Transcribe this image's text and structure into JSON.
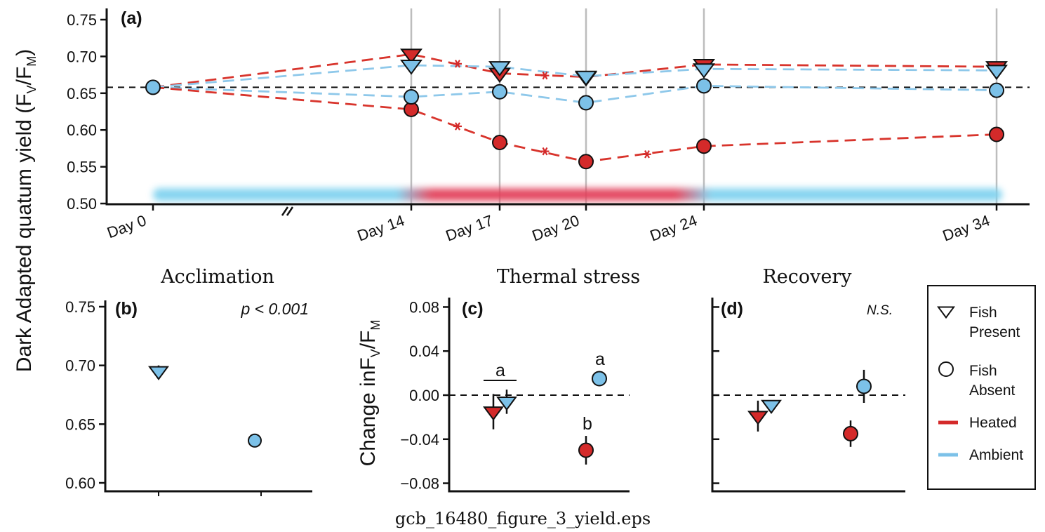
{
  "footer": "gcb_16480_figure_3_yield.eps",
  "colors": {
    "heated": "#d42a2a",
    "ambient": "#7cc1e8",
    "heated_line": "#d8342c",
    "ambient_line": "#8ec8ea",
    "band_ambient": "#7fd2ef",
    "band_heated": "#e2415a"
  },
  "chart_data": [
    {
      "panel": "a",
      "type": "line",
      "label": "(a)",
      "ylabel_parts": [
        "Dark Adapted quatum yield (F",
        "V",
        "/F",
        "M",
        ")"
      ],
      "ylim": [
        0.49,
        0.76
      ],
      "yticks": [
        "0.50",
        "0.55",
        "0.60",
        "0.65",
        "0.70",
        "0.75"
      ],
      "ytick_values": [
        0.5,
        0.55,
        0.6,
        0.65,
        0.7,
        0.75
      ],
      "categories": [
        "Day 0",
        "Day 14",
        "Day 17",
        "Day 20",
        "Day 24",
        "Day 34"
      ],
      "reference_line": 0.658,
      "axis_break": true,
      "series": [
        {
          "name": "Heated, Fish Present",
          "treatment": "Heated",
          "fish": "present",
          "values": [
            0.658,
            0.703,
            0.677,
            0.672,
            0.689,
            0.686
          ],
          "err": [
            0.01,
            0.004,
            0.004,
            0.004,
            0.005,
            0.004
          ]
        },
        {
          "name": "Ambient, Fish Present",
          "treatment": "Ambient",
          "fish": "present",
          "values": [
            0.658,
            0.688,
            0.686,
            0.673,
            0.683,
            0.681
          ],
          "err": [
            0.01,
            0.004,
            0.004,
            0.004,
            0.004,
            0.004
          ]
        },
        {
          "name": "Ambient, Fish Absent",
          "treatment": "Ambient",
          "fish": "absent",
          "values": [
            0.658,
            0.645,
            0.652,
            0.637,
            0.66,
            0.654
          ],
          "err": [
            0.01,
            0.008,
            0.006,
            0.01,
            0.008,
            0.008
          ]
        },
        {
          "name": "Heated, Fish Absent",
          "treatment": "Heated",
          "fish": "absent",
          "values": [
            0.658,
            0.628,
            0.583,
            0.557,
            0.578,
            0.594
          ],
          "err": [
            0.01,
            0.008,
            0.006,
            0.006,
            0.006,
            0.006
          ]
        }
      ],
      "significance_markers": [
        {
          "between": [
            "Day 14",
            "Day 17"
          ],
          "value": 0.69
        },
        {
          "between": [
            "Day 17",
            "Day 20"
          ],
          "value": 0.674
        },
        {
          "between": [
            "Day 14",
            "Day 17"
          ],
          "value": 0.605
        },
        {
          "between": [
            "Day 17",
            "Day 20"
          ],
          "value": 0.571
        },
        {
          "between": [
            "Day 20",
            "Day 24"
          ],
          "value": 0.567
        }
      ],
      "phases": [
        {
          "from": "Day 0",
          "to": "Day 14",
          "treatment": "Ambient"
        },
        {
          "from": "Day 14",
          "to": "Day 24",
          "treatment": "Heated"
        },
        {
          "from": "Day 24",
          "to": "Day 34",
          "treatment": "Ambient"
        }
      ]
    },
    {
      "panel": "b",
      "type": "scatter",
      "label": "(b)",
      "title": "Acclimation",
      "stat": "p < 0.001",
      "ylim": [
        0.59,
        0.76
      ],
      "yticks": [
        "0.60",
        "0.65",
        "0.70",
        "0.75"
      ],
      "ytick_values": [
        0.6,
        0.65,
        0.7,
        0.75
      ],
      "points": [
        {
          "group": "Fish Present",
          "treatment": "Ambient",
          "value": 0.695,
          "err": 0.005
        },
        {
          "group": "Fish Absent",
          "treatment": "Ambient",
          "value": 0.636,
          "err": 0.004
        }
      ]
    },
    {
      "panel": "c",
      "type": "scatter",
      "label": "(c)",
      "title": "Thermal stress",
      "ylabel_parts": [
        "Change in",
        "F",
        "V",
        "/F",
        "M"
      ],
      "ylim": [
        -0.083,
        0.083
      ],
      "yticks": [
        "0.08",
        "0.04",
        "0.00",
        "−0.04",
        "−0.08"
      ],
      "ytick_values": [
        0.08,
        0.04,
        0.0,
        -0.04,
        -0.08
      ],
      "reference_line": 0.0,
      "points": [
        {
          "group": "Fish Present",
          "treatment": "Heated",
          "value": -0.015,
          "err": 0.016
        },
        {
          "group": "Fish Present",
          "treatment": "Ambient",
          "value": -0.006,
          "err": 0.011
        },
        {
          "group": "Fish Absent",
          "treatment": "Ambient",
          "value": 0.015,
          "err": 0.003
        },
        {
          "group": "Fish Absent",
          "treatment": "Heated",
          "value": -0.05,
          "err": 0.013
        }
      ],
      "letters": [
        {
          "text": "a",
          "group": "Fish Present",
          "value": 0.02
        },
        {
          "text": "a",
          "group": "Fish Absent",
          "value": 0.028
        },
        {
          "text": "b",
          "group": "Fish Absent",
          "value": -0.028
        }
      ]
    },
    {
      "panel": "d",
      "type": "scatter",
      "label": "(d)",
      "title": "Recovery",
      "stat": "N.S.",
      "ylim": [
        -0.083,
        0.083
      ],
      "ytick_values": [
        0.08,
        0.04,
        0.0,
        -0.04,
        -0.08
      ],
      "reference_line": 0.0,
      "points": [
        {
          "group": "Fish Present",
          "treatment": "Heated",
          "value": -0.019,
          "err": 0.014
        },
        {
          "group": "Fish Present",
          "treatment": "Ambient",
          "value": -0.009,
          "err": 0.004
        },
        {
          "group": "Fish Absent",
          "treatment": "Ambient",
          "value": 0.008,
          "err": 0.015
        },
        {
          "group": "Fish Absent",
          "treatment": "Heated",
          "value": -0.035,
          "err": 0.012
        }
      ]
    }
  ],
  "legend": [
    {
      "label_lines": [
        "Fish",
        "Present"
      ],
      "symbol": "triangle"
    },
    {
      "label_lines": [
        "Fish",
        "Absent"
      ],
      "symbol": "circle"
    },
    {
      "label_lines": [
        "Heated"
      ],
      "symbol": "line-heated"
    },
    {
      "label_lines": [
        "Ambient"
      ],
      "symbol": "line-ambient"
    }
  ]
}
